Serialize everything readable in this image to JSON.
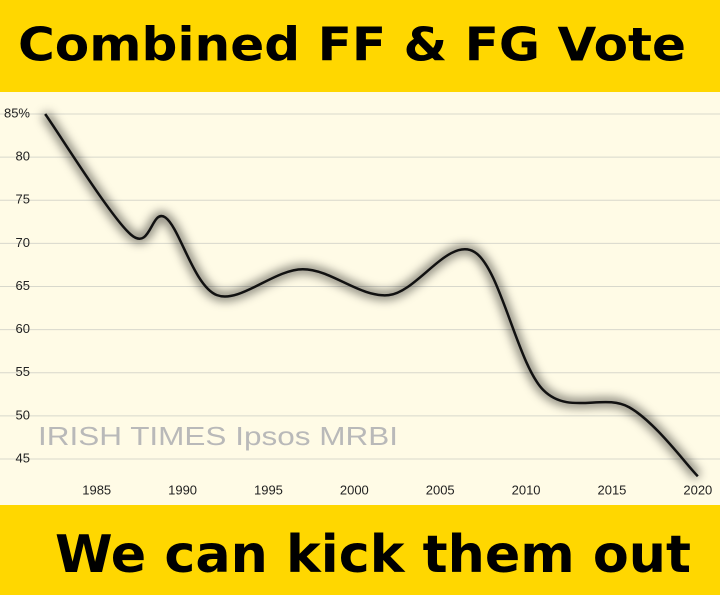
{
  "chart_data": {
    "type": "line",
    "title": "Combined FF & FG Vote",
    "caption": "We can kick them out",
    "annotation": "IRISH TIMES Ipsos MRBI",
    "x": [
      1982,
      1987,
      1989,
      1992,
      1997,
      2002,
      2007,
      2011,
      2016,
      2020
    ],
    "series": [
      {
        "color": "#111111",
        "values": [
          85,
          71,
          73,
          64,
          67,
          64,
          69,
          53,
          51,
          43
        ]
      }
    ],
    "xlim": [
      1981,
      2021
    ],
    "xticks": [
      1985,
      1990,
      1995,
      2000,
      2005,
      2010,
      2015,
      2020
    ],
    "ylim": [
      44,
      86
    ],
    "yticks": [
      45,
      50,
      55,
      60,
      65,
      70,
      75,
      80,
      {
        "value": 85,
        "label": "85%"
      }
    ],
    "grid": true
  }
}
